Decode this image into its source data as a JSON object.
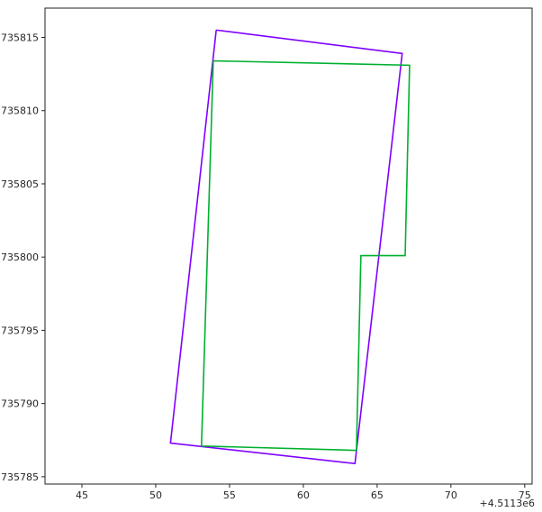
{
  "chart_data": {
    "type": "line",
    "title": "",
    "xlabel": "",
    "ylabel": "",
    "x_offset_label": "+4.5113e6",
    "xlim": [
      42.5,
      75.5
    ],
    "ylim": [
      735784.5,
      735817
    ],
    "x_ticks": [
      45,
      50,
      55,
      60,
      65,
      70,
      75
    ],
    "y_ticks": [
      735785,
      735790,
      735795,
      735800,
      735805,
      735810,
      735815
    ],
    "x_tick_labels": [
      "45",
      "50",
      "55",
      "60",
      "65",
      "70",
      "75"
    ],
    "y_tick_labels": [
      "735785",
      "735790",
      "735795",
      "735800",
      "735805",
      "735810",
      "735815"
    ],
    "grid": false,
    "legend": false,
    "series": [
      {
        "color": "#7f00ff",
        "closed": true,
        "x": [
          54.1,
          66.7,
          63.5,
          51.0,
          54.1
        ],
        "y": [
          735815.5,
          735813.9,
          735785.9,
          735787.3,
          735815.5
        ]
      },
      {
        "color": "#00b030",
        "closed": true,
        "x": [
          53.9,
          67.2,
          66.9,
          63.9,
          63.6,
          53.1,
          53.9
        ],
        "y": [
          735813.4,
          735813.1,
          735800.1,
          735800.1,
          735786.8,
          735787.1,
          735813.4
        ]
      }
    ]
  }
}
